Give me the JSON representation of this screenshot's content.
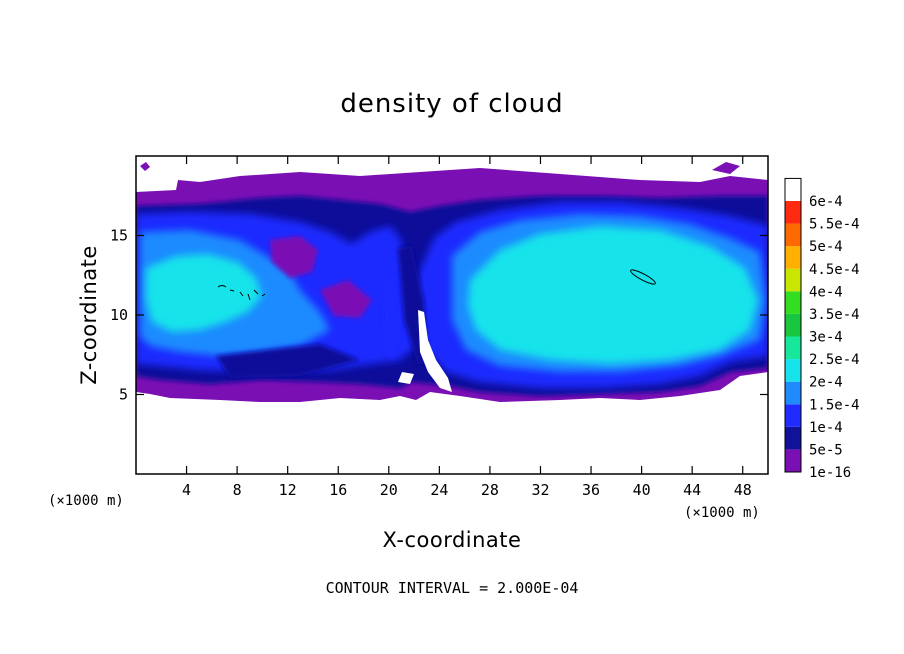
{
  "chart_data": {
    "type": "heatmap",
    "title": "density of cloud",
    "xlabel": "X-coordinate",
    "ylabel": "Z-coordinate",
    "x_unit_label": "(×1000 m)",
    "y_unit_label": "(×1000 m)",
    "footer": "CONTOUR INTERVAL = 2.000E-04",
    "xlim": [
      0,
      50
    ],
    "ylim": [
      0,
      20
    ],
    "x_ticks": [
      {
        "value": 4,
        "label": "4"
      },
      {
        "value": 8,
        "label": "8"
      },
      {
        "value": 12,
        "label": "12"
      },
      {
        "value": 16,
        "label": "16"
      },
      {
        "value": 20,
        "label": "20"
      },
      {
        "value": 24,
        "label": "24"
      },
      {
        "value": 28,
        "label": "28"
      },
      {
        "value": 32,
        "label": "32"
      },
      {
        "value": 36,
        "label": "36"
      },
      {
        "value": 40,
        "label": "40"
      },
      {
        "value": 44,
        "label": "44"
      },
      {
        "value": 48,
        "label": "48"
      }
    ],
    "y_ticks": [
      {
        "value": 5,
        "label": "5"
      },
      {
        "value": 10,
        "label": "10"
      },
      {
        "value": 15,
        "label": "15"
      }
    ],
    "colorbar": [
      {
        "label": "1e-16",
        "color": "#7a0fb4"
      },
      {
        "label": "5e-5",
        "color": "#11119a"
      },
      {
        "label": "1e-4",
        "color": "#1f2bff"
      },
      {
        "label": "1.5e-4",
        "color": "#1f8bff"
      },
      {
        "label": "2e-4",
        "color": "#16e3ea"
      },
      {
        "label": "2.5e-4",
        "color": "#17e79a"
      },
      {
        "label": "3e-4",
        "color": "#19c640"
      },
      {
        "label": "3.5e-4",
        "color": "#33dd22"
      },
      {
        "label": "4e-4",
        "color": "#c8e600"
      },
      {
        "label": "4.5e-4",
        "color": "#ffb000"
      },
      {
        "label": "5e-4",
        "color": "#ff6a00"
      },
      {
        "label": "5.5e-4",
        "color": "#ff2a10"
      },
      {
        "label": "6e-4",
        "color": "#ff8f8f"
      }
    ],
    "regions": [
      {
        "name": "left-cloud",
        "x_range": [
          0,
          21
        ],
        "z_range": [
          5,
          18
        ],
        "max_value": "1.5e-4 to 2e-4"
      },
      {
        "name": "right-cloud",
        "x_range": [
          24,
          50
        ],
        "z_range": [
          4.5,
          17.5
        ],
        "max_value": "2e-4"
      }
    ]
  }
}
